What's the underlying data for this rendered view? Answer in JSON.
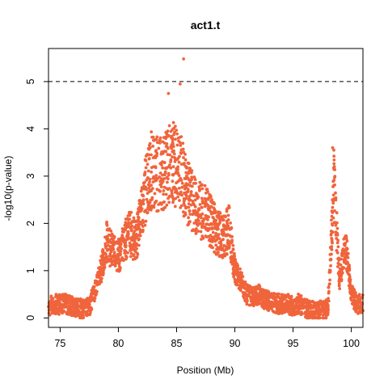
{
  "chart_data": {
    "type": "scatter",
    "title": "act1.t",
    "xlabel": "Position (Mb)",
    "ylabel": "-log10(p-value)",
    "xlim": [
      74,
      101
    ],
    "ylim": [
      -0.2,
      5.7
    ],
    "xticks": [
      75,
      80,
      85,
      90,
      95,
      100
    ],
    "yticks": [
      0,
      1,
      2,
      3,
      4,
      5
    ],
    "threshold": 5.0,
    "point_color": "#F0643C",
    "grid": false,
    "legend": "none",
    "series": [
      {
        "profile": [
          [
            74.0,
            0.25
          ],
          [
            74.5,
            0.3
          ],
          [
            75.0,
            0.28
          ],
          [
            75.5,
            0.3
          ],
          [
            76.0,
            0.25
          ],
          [
            76.5,
            0.2
          ],
          [
            77.0,
            0.2
          ],
          [
            77.5,
            0.22
          ],
          [
            78.0,
            0.6
          ],
          [
            78.5,
            1.0
          ],
          [
            79.0,
            1.6
          ],
          [
            79.5,
            1.4
          ],
          [
            80.0,
            1.3
          ],
          [
            80.5,
            1.6
          ],
          [
            81.0,
            1.8
          ],
          [
            81.5,
            1.6
          ],
          [
            82.0,
            2.2
          ],
          [
            82.5,
            3.0
          ],
          [
            83.0,
            3.2
          ],
          [
            83.5,
            3.0
          ],
          [
            84.0,
            3.1
          ],
          [
            84.5,
            3.3
          ],
          [
            85.0,
            3.2
          ],
          [
            85.5,
            3.0
          ],
          [
            86.0,
            2.6
          ],
          [
            86.5,
            2.4
          ],
          [
            87.0,
            2.3
          ],
          [
            87.5,
            2.2
          ],
          [
            88.0,
            2.0
          ],
          [
            88.5,
            1.8
          ],
          [
            89.0,
            1.7
          ],
          [
            89.5,
            1.9
          ],
          [
            90.0,
            1.0
          ],
          [
            90.5,
            0.8
          ],
          [
            91.0,
            0.5
          ],
          [
            91.5,
            0.45
          ],
          [
            92.0,
            0.5
          ],
          [
            92.5,
            0.4
          ],
          [
            93.0,
            0.35
          ],
          [
            93.5,
            0.3
          ],
          [
            94.0,
            0.3
          ],
          [
            94.5,
            0.3
          ],
          [
            95.0,
            0.25
          ],
          [
            95.5,
            0.3
          ],
          [
            96.0,
            0.2
          ],
          [
            96.5,
            0.15
          ],
          [
            97.0,
            0.15
          ],
          [
            97.5,
            0.15
          ],
          [
            98.0,
            0.2
          ],
          [
            98.5,
            2.8
          ],
          [
            99.0,
            0.8
          ],
          [
            99.5,
            1.6
          ],
          [
            100.0,
            0.5
          ],
          [
            100.5,
            0.3
          ],
          [
            101.0,
            0.3
          ]
        ],
        "spread": 0.6,
        "peak_points": [
          [
            85.6,
            5.48
          ],
          [
            85.3,
            4.95
          ],
          [
            84.3,
            4.75
          ],
          [
            98.4,
            3.6
          ],
          [
            98.5,
            3.55
          ]
        ]
      }
    ]
  }
}
